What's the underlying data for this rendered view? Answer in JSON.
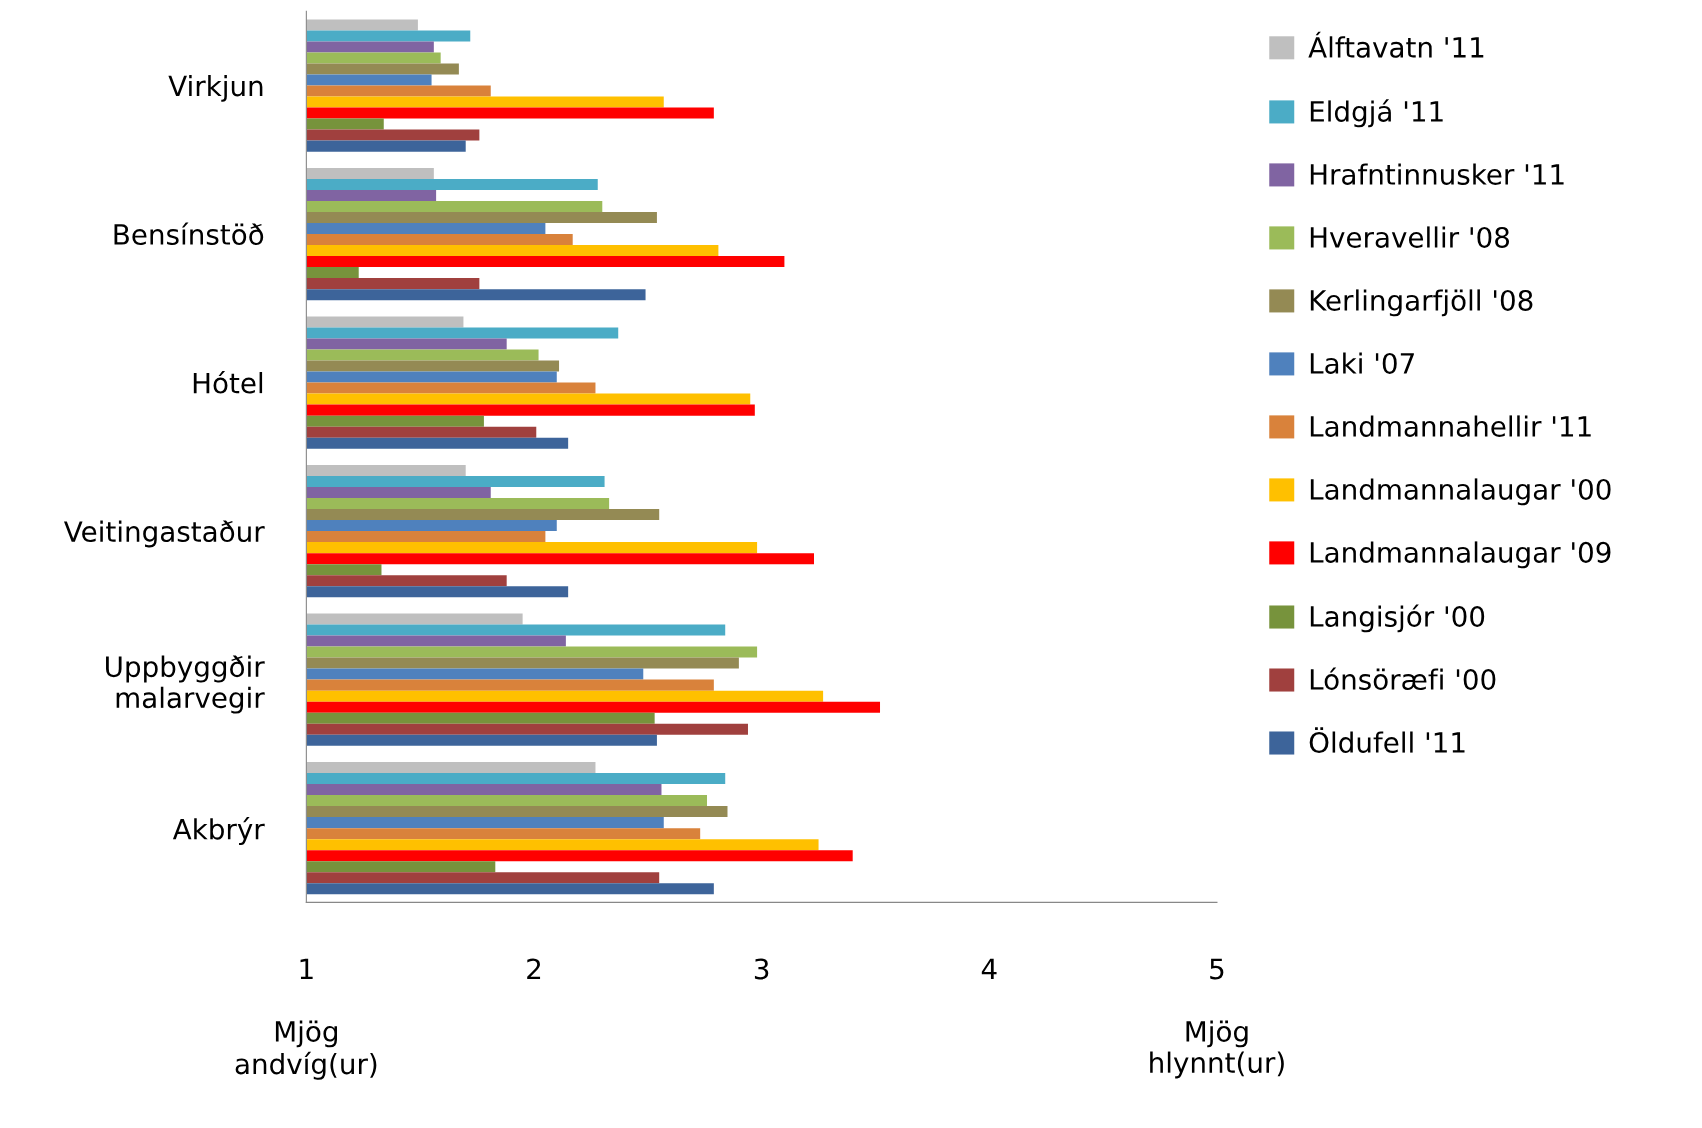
{
  "chart_data": {
    "type": "bar",
    "orientation": "horizontal",
    "categories": [
      "Virkjun",
      "Bensínstöð",
      "Hótel",
      "Veitingastaður",
      "Uppbyggðir\nmalarvegir",
      "Akbrýr"
    ],
    "series": [
      {
        "name": "Álftavatn '11",
        "color": "#bfbfbf",
        "values": [
          1.49,
          1.56,
          1.69,
          1.7,
          1.95,
          2.27
        ]
      },
      {
        "name": "Eldgjá '11",
        "color": "#4bacc6",
        "values": [
          1.72,
          2.28,
          2.37,
          2.31,
          2.84,
          2.84
        ]
      },
      {
        "name": "Hrafntinnusker '11",
        "color": "#8064a2",
        "values": [
          1.56,
          1.57,
          1.88,
          1.81,
          2.14,
          2.56
        ]
      },
      {
        "name": "Hveravellir '08",
        "color": "#9bbb59",
        "values": [
          1.59,
          2.3,
          2.02,
          2.33,
          2.98,
          2.76
        ]
      },
      {
        "name": "Kerlingarfjöll '08",
        "color": "#948a54",
        "values": [
          1.67,
          2.54,
          2.11,
          2.55,
          2.9,
          2.85
        ]
      },
      {
        "name": "Laki '07",
        "color": "#4f81bd",
        "values": [
          1.55,
          2.05,
          2.1,
          2.1,
          2.48,
          2.57
        ]
      },
      {
        "name": "Landmannahellir '11",
        "color": "#d9823b",
        "values": [
          1.81,
          2.17,
          2.27,
          2.05,
          2.79,
          2.73
        ]
      },
      {
        "name": "Landmannalaugar '00",
        "color": "#ffc000",
        "values": [
          2.57,
          2.81,
          2.95,
          2.98,
          3.27,
          3.25
        ]
      },
      {
        "name": "Landmannalaugar '09",
        "color": "#ff0000",
        "values": [
          2.79,
          3.1,
          2.97,
          3.23,
          3.52,
          3.4
        ]
      },
      {
        "name": "Langisjór '00",
        "color": "#77933c",
        "values": [
          1.34,
          1.23,
          1.78,
          1.33,
          2.53,
          1.83
        ]
      },
      {
        "name": "Lónsöræfi '00",
        "color": "#a0403e",
        "values": [
          1.76,
          1.76,
          2.01,
          1.88,
          2.94,
          2.55
        ]
      },
      {
        "name": "Öldufell '11",
        "color": "#3d649a",
        "values": [
          1.7,
          2.49,
          2.15,
          2.15,
          2.54,
          2.79
        ]
      }
    ],
    "xlim": [
      1,
      5
    ],
    "xticks": [
      1,
      2,
      3,
      4,
      5
    ],
    "annotations": [
      "Mjög\nandvíg(ur)",
      "Mjög\nhlynnt(ur)"
    ],
    "grid": false,
    "legend": "right"
  }
}
